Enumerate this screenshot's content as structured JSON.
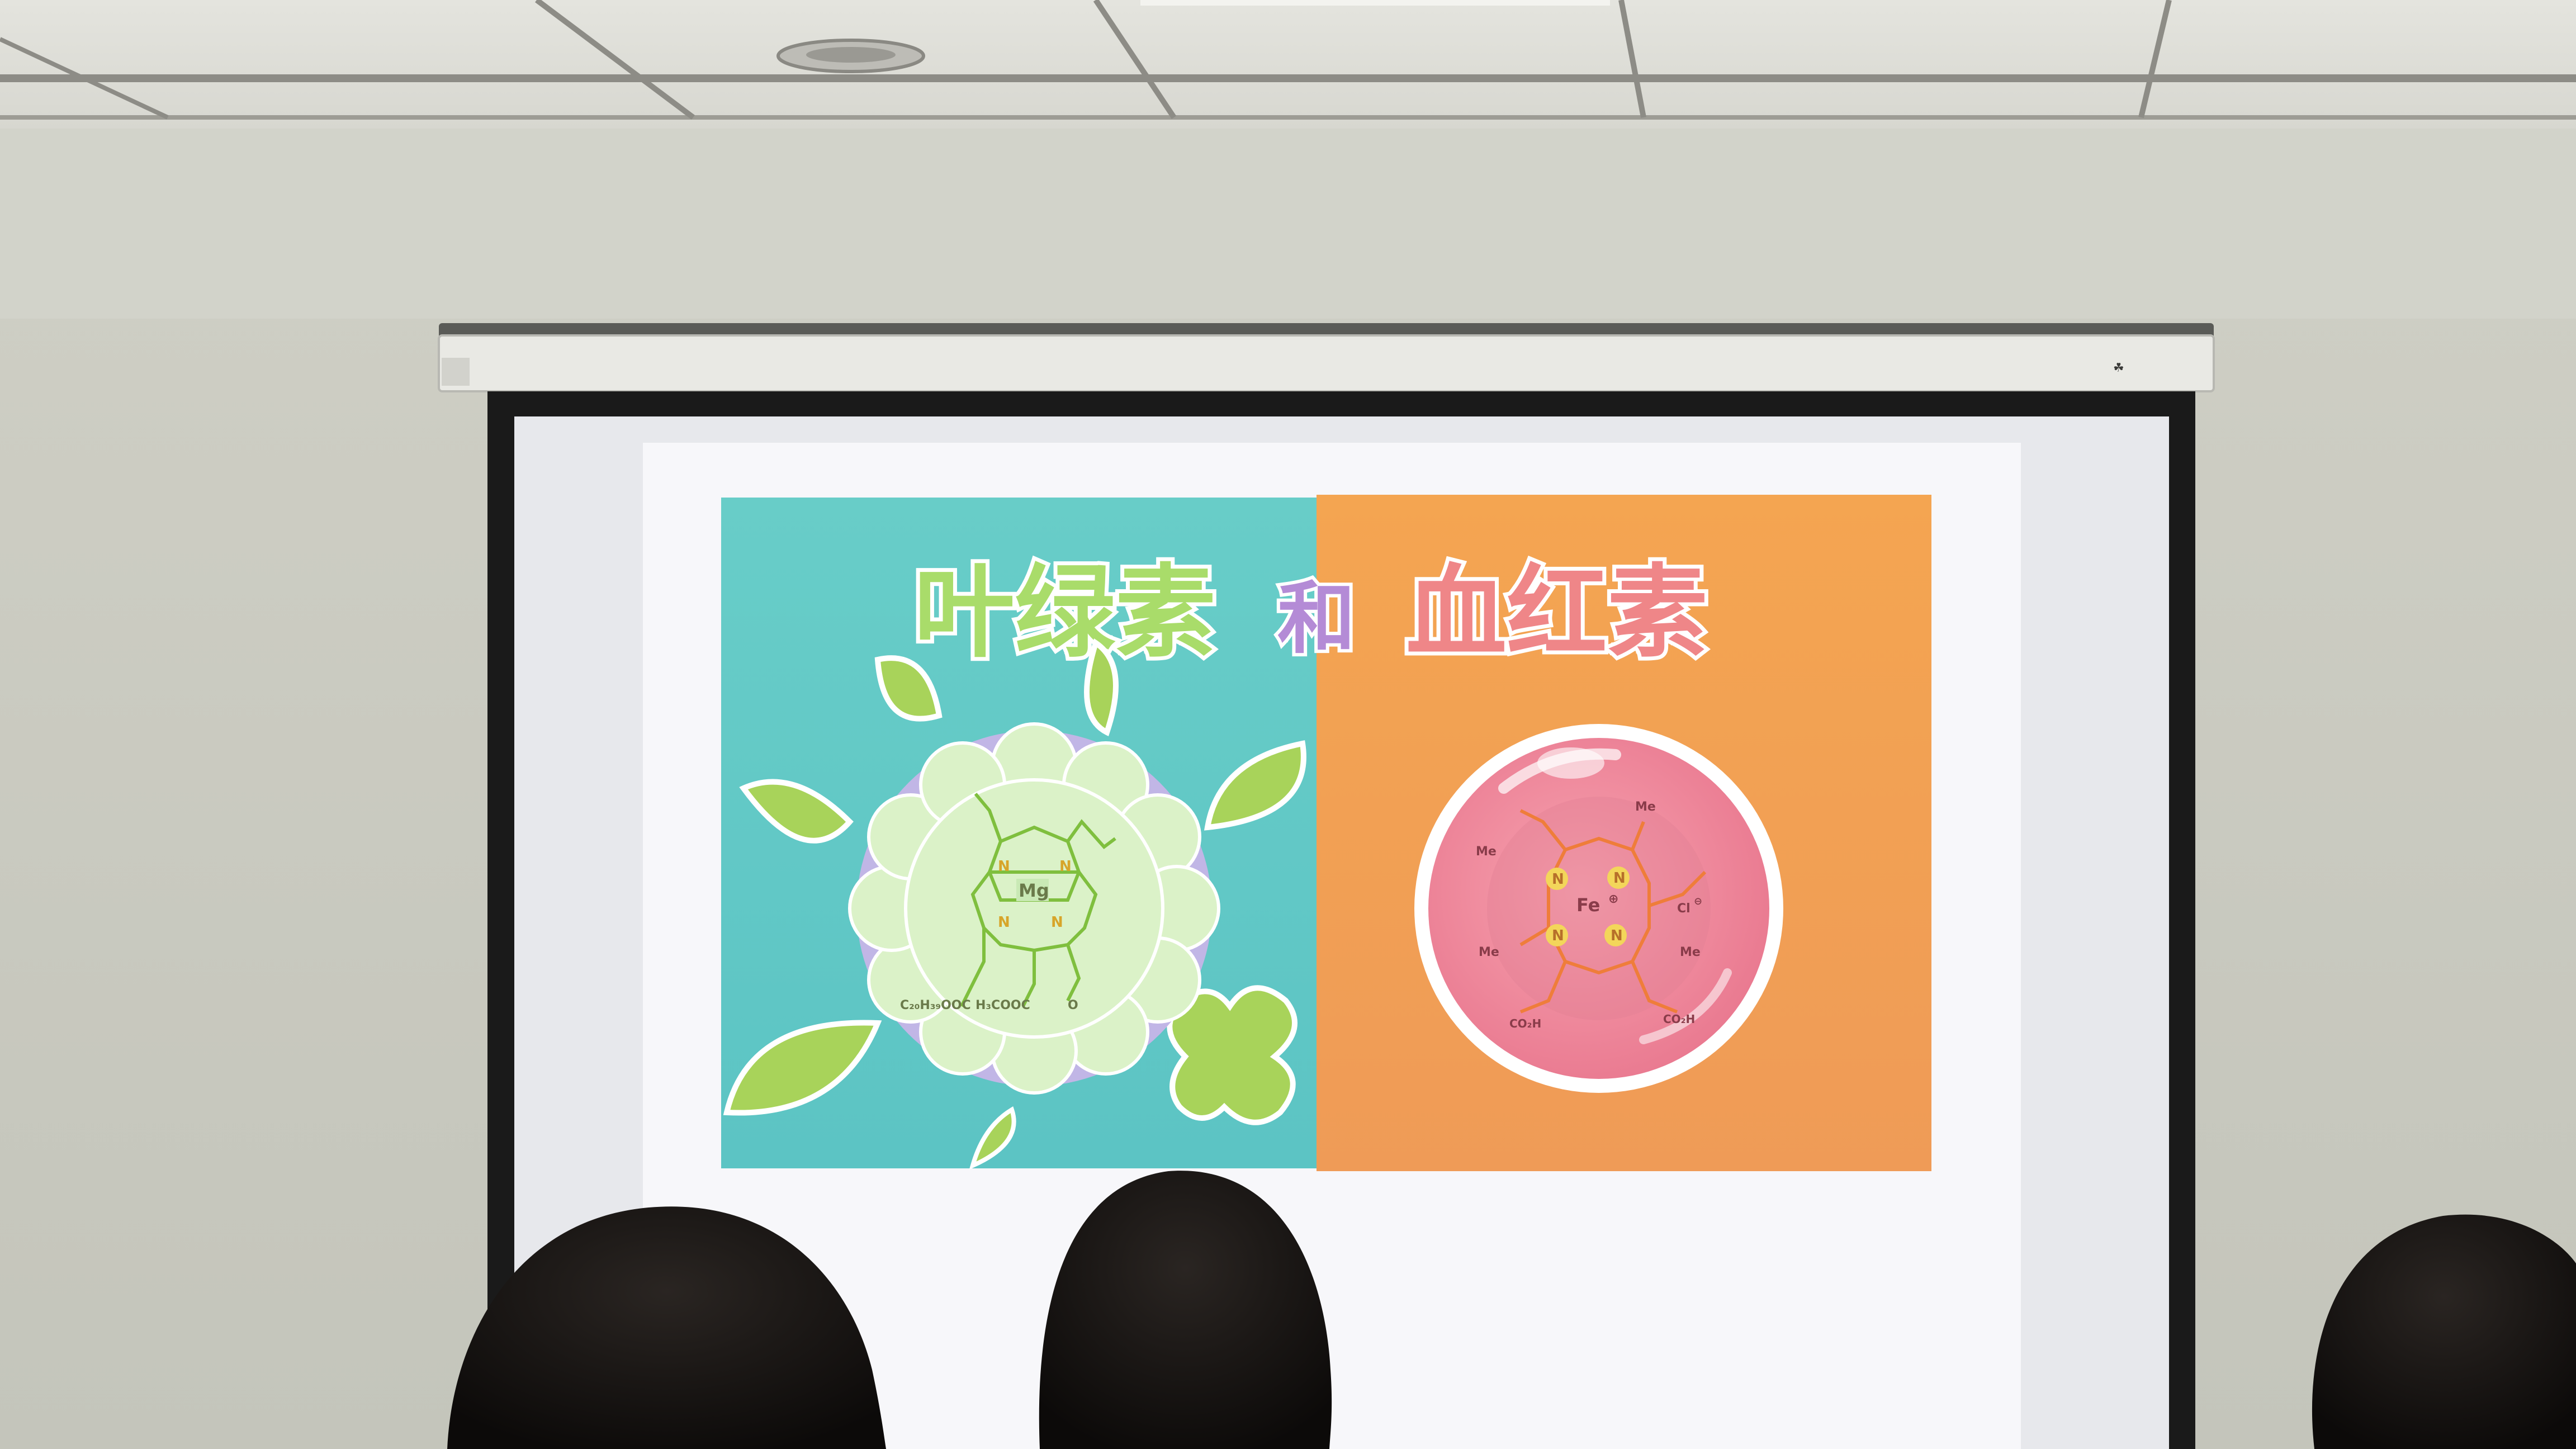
{
  "slide": {
    "title_left": "叶绿素",
    "title_connector": "和",
    "title_right": "血红素"
  },
  "chlorophyll": {
    "n1": "N",
    "n2": "N",
    "n3": "N",
    "n4": "N",
    "metal": "Mg",
    "ester_phytyl": "C₂₀H₃₉OOC",
    "ester_methyl": "H₃COOC",
    "keto": "O"
  },
  "heme": {
    "n1": "N",
    "n2": "N",
    "n3": "N",
    "n4": "N",
    "metal": "Fe",
    "charge_plus": "⊕",
    "me_top": "Me",
    "me_left": "Me",
    "me_bottom_left": "Me",
    "me_right": "Me",
    "counter_ion": "Cl",
    "charge_minus": "⊖",
    "acid_left": "CO₂H",
    "acid_right": "CO₂H"
  },
  "colors": {
    "left_panel": "#62c9c6",
    "right_panel": "#f0a256",
    "title_green": "#9ed35f",
    "title_purple": "#b48bd6",
    "title_red": "#e77a7c"
  }
}
